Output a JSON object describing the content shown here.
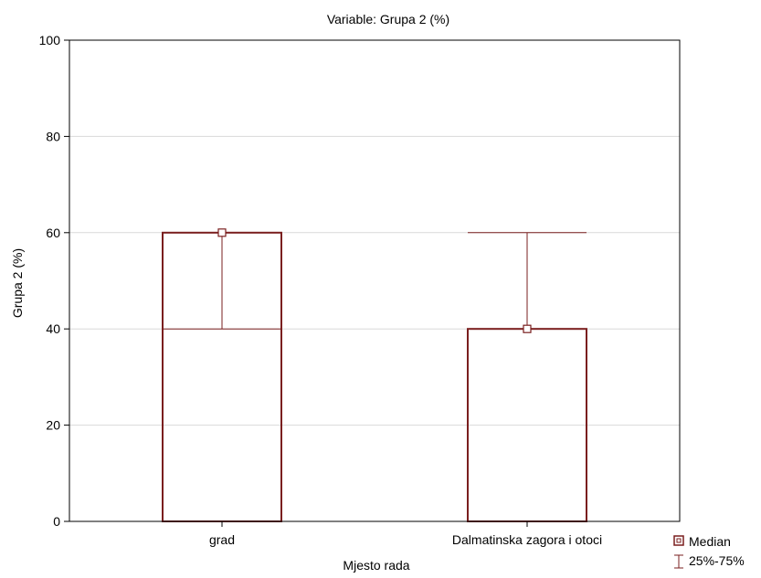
{
  "chart_data": {
    "type": "bar",
    "title": "Variable: Grupa 2 (%)",
    "xlabel": "Mjesto  rada",
    "ylabel": "Grupa 2 (%)",
    "ylim": [
      0,
      100
    ],
    "yticks": [
      "0",
      "20",
      "40",
      "60",
      "80",
      "100"
    ],
    "ytick_values": [
      0,
      20,
      40,
      60,
      80,
      100
    ],
    "categories": [
      "grad",
      "Dalmatinska zagora i otoci"
    ],
    "series": [
      {
        "name": "Median",
        "values": [
          60,
          40
        ]
      },
      {
        "name": "25%-75%",
        "values": [
          [
            40,
            60
          ],
          [
            40,
            60
          ]
        ]
      }
    ],
    "grid": true,
    "legend": {
      "position": "bottom-right",
      "items": [
        "Median",
        "25%-75%"
      ]
    },
    "colors": {
      "series": "#7a1f1f",
      "axis": "#000000",
      "grid": "#d9d9d9"
    }
  }
}
